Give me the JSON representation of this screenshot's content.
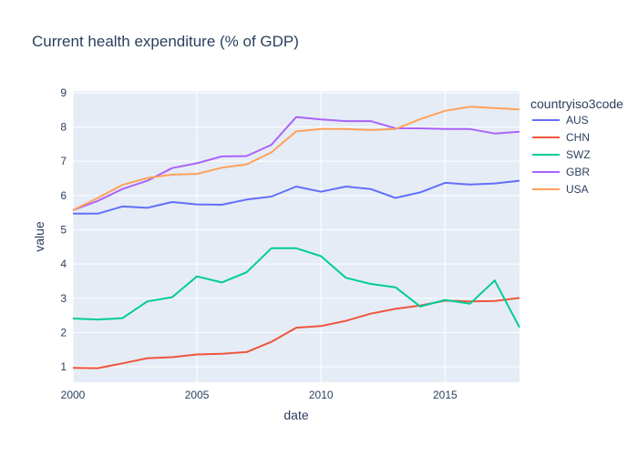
{
  "chart_data": {
    "type": "line",
    "title": "Current health expenditure (% of GDP)",
    "xlabel": "date",
    "ylabel": "value",
    "xlim": [
      2000,
      2018
    ],
    "ylim": [
      0.55,
      9.05
    ],
    "x_ticks": [
      2000,
      2005,
      2010,
      2015
    ],
    "y_ticks": [
      1,
      2,
      3,
      4,
      5,
      6,
      7,
      8,
      9
    ],
    "grid": true,
    "legend_title": "countryiso3code",
    "legend_position": "top-right",
    "x": [
      2000,
      2001,
      2002,
      2003,
      2004,
      2005,
      2006,
      2007,
      2008,
      2009,
      2010,
      2011,
      2012,
      2013,
      2014,
      2015,
      2016,
      2017,
      2018
    ],
    "series": [
      {
        "name": "AUS",
        "color": "#636efa",
        "values": [
          5.47,
          5.47,
          5.68,
          5.64,
          5.81,
          5.74,
          5.73,
          5.88,
          5.97,
          6.26,
          6.11,
          6.26,
          6.19,
          5.93,
          6.09,
          6.37,
          6.32,
          6.35,
          6.43
        ]
      },
      {
        "name": "CHN",
        "color": "#ef553b",
        "values": [
          0.97,
          0.96,
          1.1,
          1.25,
          1.28,
          1.36,
          1.38,
          1.43,
          1.73,
          2.14,
          2.19,
          2.34,
          2.55,
          2.69,
          2.79,
          2.93,
          2.91,
          2.92,
          3.01
        ]
      },
      {
        "name": "SWZ",
        "color": "#00cc96",
        "values": [
          2.41,
          2.38,
          2.42,
          2.91,
          3.03,
          3.64,
          3.46,
          3.76,
          4.46,
          4.46,
          4.23,
          3.6,
          3.42,
          3.32,
          2.76,
          2.95,
          2.84,
          3.52,
          2.15
        ]
      },
      {
        "name": "GBR",
        "color": "#ab63fa",
        "values": [
          5.57,
          5.84,
          6.19,
          6.43,
          6.8,
          6.94,
          7.14,
          7.15,
          7.48,
          8.29,
          8.22,
          8.17,
          8.17,
          7.96,
          7.96,
          7.94,
          7.94,
          7.81,
          7.86
        ]
      },
      {
        "name": "USA",
        "color": "#ffa15a",
        "values": [
          5.57,
          5.93,
          6.31,
          6.51,
          6.61,
          6.63,
          6.81,
          6.91,
          7.26,
          7.87,
          7.94,
          7.94,
          7.91,
          7.94,
          8.23,
          8.47,
          8.59,
          8.55,
          8.51
        ]
      }
    ]
  }
}
